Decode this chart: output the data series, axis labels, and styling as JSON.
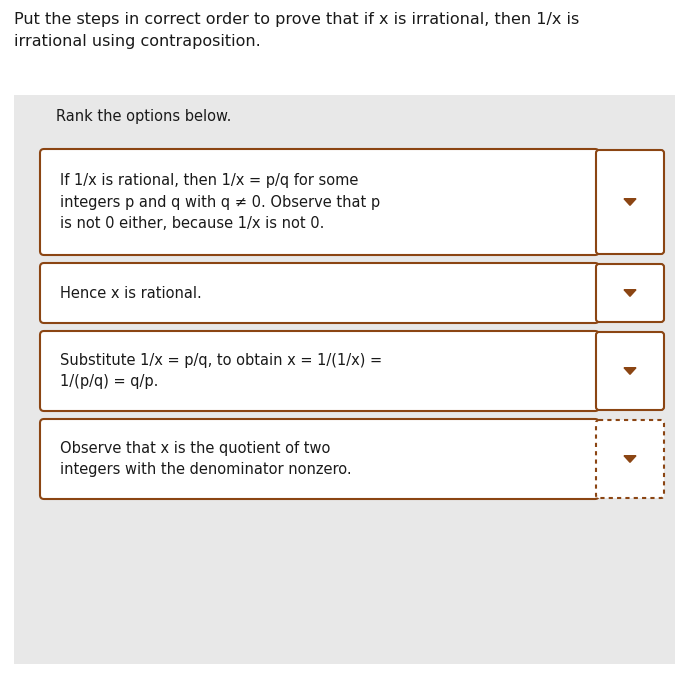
{
  "title_line1": "Put the steps in correct order to prove that if x is irrational, then 1/x is",
  "title_line2": "irrational using contraposition.",
  "subtitle": "Rank the options below.",
  "page_background": "#ffffff",
  "panel_background": "#e8e8e8",
  "box_border_color": "#8B4513",
  "arrow_color": "#8B4513",
  "text_color": "#1a1a1a",
  "items": [
    {
      "text": "If 1/x is rational, then 1/x = p/q for some\nintegers p and q with q ≠ 0. Observe that p\nis not 0 either, because 1/x is not 0.",
      "dotted": false
    },
    {
      "text": "Hence x is rational.",
      "dotted": false
    },
    {
      "text": "Substitute 1/x = p/q, to obtain x = 1/(1/x) =\n1/(p/q) = q/p.",
      "dotted": false
    },
    {
      "text": "Observe that x is the quotient of two\nintegers with the denominator nonzero.",
      "dotted": true
    }
  ],
  "fig_w": 6.89,
  "fig_h": 6.74,
  "dpi": 100,
  "title_fontsize": 11.5,
  "subtitle_fontsize": 10.5,
  "item_fontsize": 10.5
}
